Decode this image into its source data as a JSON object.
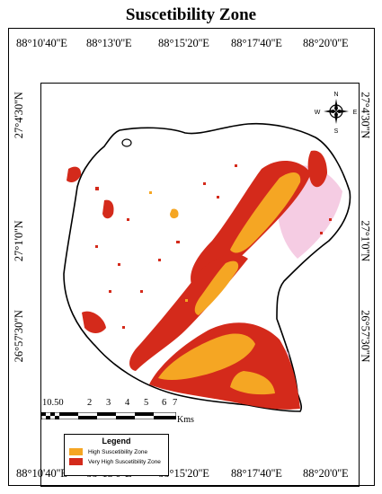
{
  "title": "Suscetibility Zone",
  "top_ticks": [
    "88°10'40''E",
    "88°13'0''E",
    "88°15'20''E",
    "88°17'40''E",
    "88°20'0''E"
  ],
  "bottom_ticks": [
    "88°10'40''E",
    "88°13'0''E",
    "88°15'20''E",
    "88°17'40''E",
    "88°20'0''E"
  ],
  "left_ticks": [
    "27°4'30''N",
    "27°1'0''N",
    "26°57'30''N"
  ],
  "right_ticks": [
    "27°4'30''N",
    "27°1'0''N",
    "26°57'30''N"
  ],
  "compass": {
    "n": "N",
    "s": "S",
    "e": "E",
    "w": "W"
  },
  "scale": {
    "labels": [
      "10.50",
      "2",
      "3",
      "4",
      "5",
      "6",
      "7"
    ],
    "unit": "Kms"
  },
  "legend": {
    "title": "Legend",
    "items": [
      {
        "label": "High Suscetibility Zone",
        "color": "#F5A623"
      },
      {
        "label": "Very High Suscetibility Zone",
        "color": "#D42A1B"
      }
    ]
  },
  "colors": {
    "high": "#F5A623",
    "very_high": "#D42A1B",
    "pink": "#F4C6E0"
  }
}
